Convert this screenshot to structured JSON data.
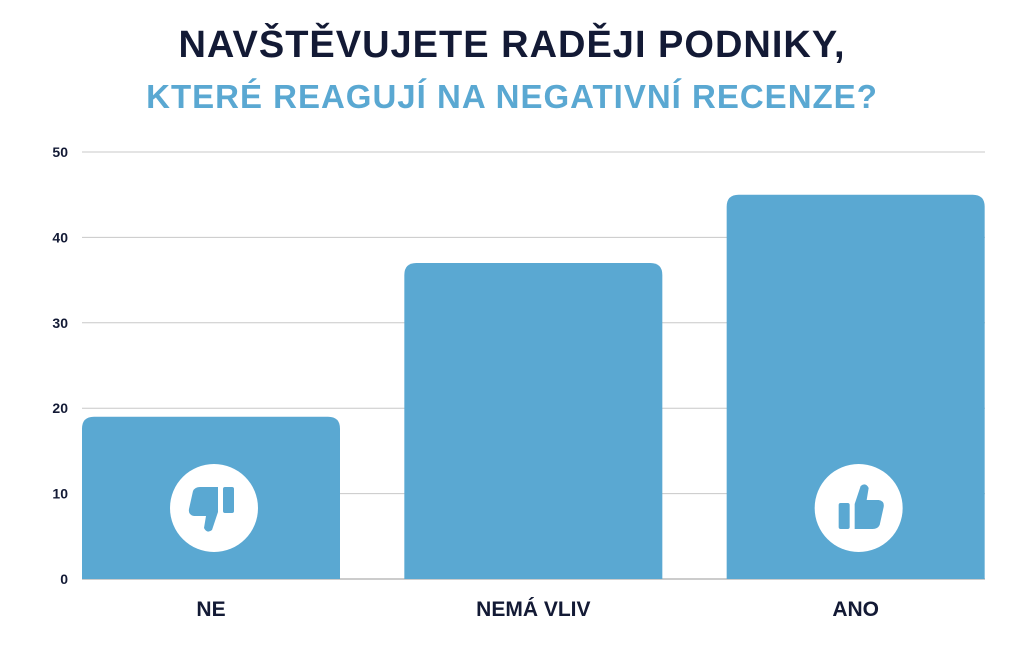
{
  "chart_data": {
    "type": "bar",
    "title": "NAVŠTĚVUJETE RADĚJI PODNIKY,",
    "subtitle": "KTERÉ REAGUJÍ NA NEGATIVNÍ RECENZE?",
    "categories": [
      "NE",
      "NEMÁ VLIV",
      "ANO"
    ],
    "values": [
      19,
      37,
      45
    ],
    "icons": [
      "thumbs-down-icon",
      null,
      "thumbs-up-icon"
    ],
    "xlabel": "",
    "ylabel": "",
    "ylim": [
      0,
      50
    ],
    "yticks": [
      0,
      10,
      20,
      30,
      40,
      50
    ],
    "grid": true,
    "colors": {
      "bar": "#5aa8d2",
      "title": "#131a35",
      "subtitle": "#5aa8d2",
      "grid": "#c8c8c8"
    }
  }
}
